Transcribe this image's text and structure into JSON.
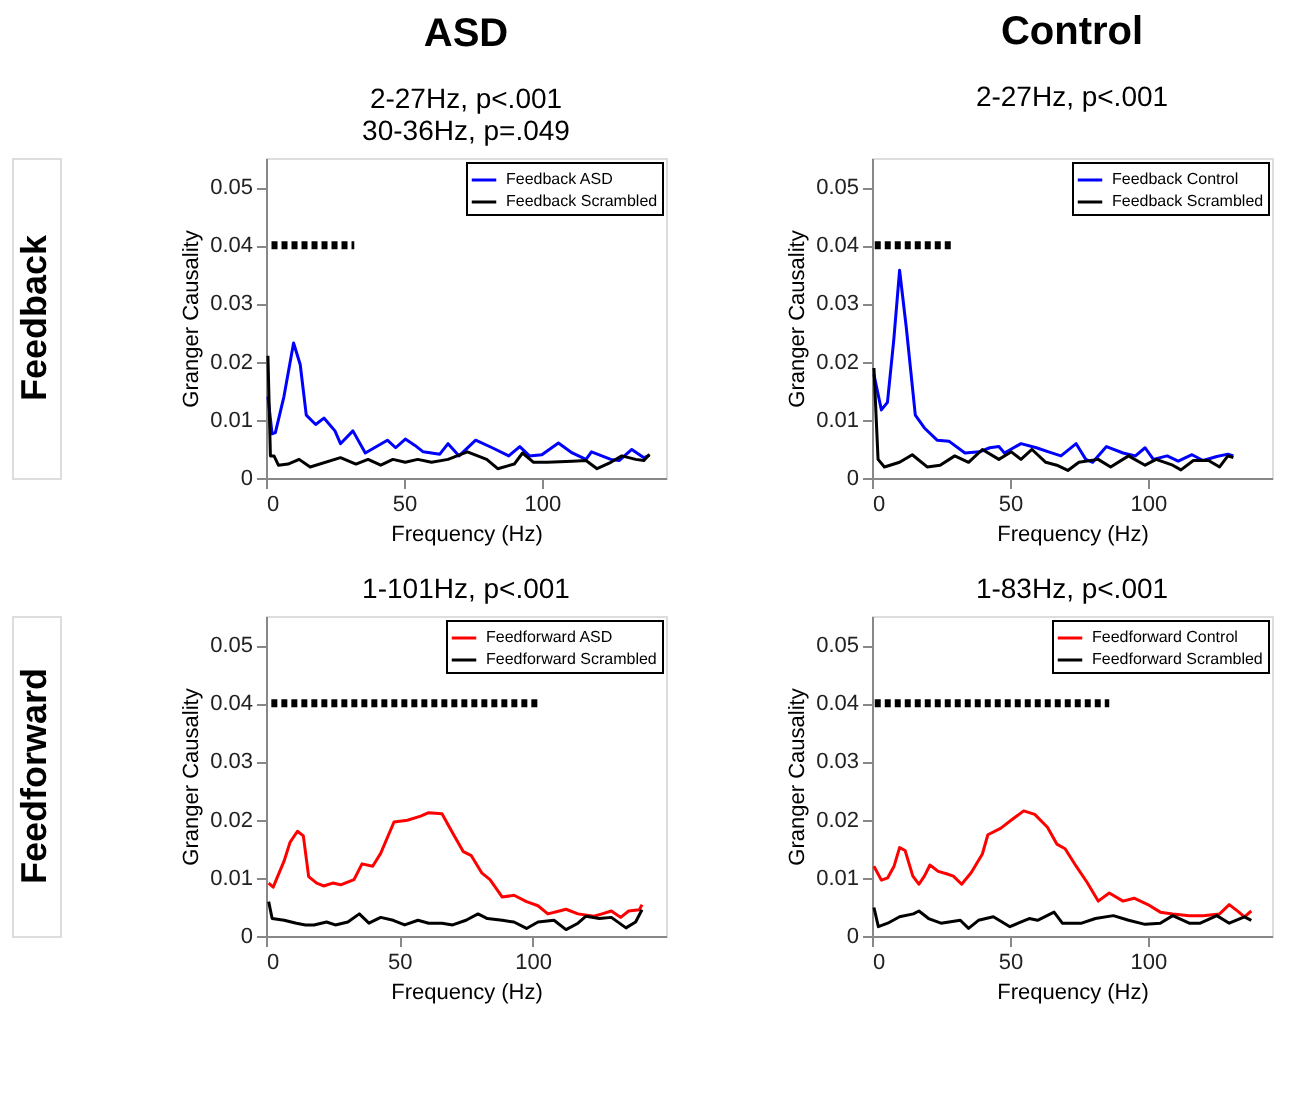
{
  "chart_data": [
    {
      "type": "line",
      "title": "ASD",
      "subtitle": "2-27Hz, p<.001\n30-36Hz, p=.049",
      "xlabel": "Frequency (Hz)",
      "ylabel": "Granger Causality",
      "annotations": [
        "Feedback"
      ],
      "xlim": [
        0,
        145
      ],
      "xticks": [
        0,
        50,
        100
      ],
      "ylim": [
        0,
        0.055
      ],
      "yticks": [
        0,
        0.01,
        0.02,
        0.03,
        0.04,
        0.05
      ],
      "legend": "top right",
      "series": [
        {
          "name": "Feedback ASD",
          "color": "#0000ff",
          "x": [
            0.7,
            2.2,
            3.4,
            6.5,
            10,
            12.4,
            14.6,
            18,
            21,
            25,
            27,
            31.5,
            36,
            44,
            47,
            50.5,
            54,
            57,
            63,
            66,
            70,
            76,
            82,
            88,
            92,
            95.5,
            100,
            106,
            111,
            116,
            118,
            125,
            128,
            132.6,
            137,
            139
          ],
          "values": [
            0.014,
            0.0076,
            0.0078,
            0.014,
            0.0232,
            0.0195,
            0.0108,
            0.0092,
            0.0103,
            0.0081,
            0.0059,
            0.0081,
            0.0043,
            0.0065,
            0.0052,
            0.0067,
            0.0056,
            0.0045,
            0.0041,
            0.0059,
            0.0038,
            0.0065,
            0.0052,
            0.0038,
            0.0054,
            0.0038,
            0.004,
            0.006,
            0.0043,
            0.0032,
            0.0045,
            0.0032,
            0.003,
            0.0049,
            0.0035,
            0.0039
          ]
        },
        {
          "name": "Feedback Scrambled",
          "color": "#000000",
          "x": [
            0.7,
            1.6,
            2.9,
            4.5,
            8,
            12,
            16,
            27,
            32.6,
            37,
            41.6,
            46,
            50.5,
            55,
            60,
            66,
            73,
            80,
            84,
            90,
            93,
            97,
            102,
            111,
            116,
            120,
            125,
            129,
            134,
            137,
            139
          ],
          "values": [
            0.021,
            0.0038,
            0.0038,
            0.0022,
            0.0024,
            0.0032,
            0.0019,
            0.0035,
            0.0024,
            0.0032,
            0.0022,
            0.0032,
            0.0027,
            0.0032,
            0.0027,
            0.0032,
            0.0045,
            0.0032,
            0.0016,
            0.0024,
            0.0043,
            0.0027,
            0.0027,
            0.0029,
            0.003,
            0.0016,
            0.0027,
            0.0038,
            0.0032,
            0.003,
            0.0041
          ]
        },
        {
          "color": "#000000",
          "line_style": "dotted",
          "x": [
            2,
            32
          ],
          "values": [
            0.04,
            0.04
          ]
        }
      ]
    },
    {
      "type": "line",
      "title": "Control",
      "subtitle": "2-27Hz, p<.001",
      "xlabel": "Frequency (Hz)",
      "ylabel": "Granger Causality",
      "xlim": [
        0,
        145
      ],
      "xticks": [
        0,
        50,
        100
      ],
      "ylim": [
        0,
        0.055
      ],
      "yticks": [
        0,
        0.01,
        0.02,
        0.03,
        0.04,
        0.05
      ],
      "legend": "top right",
      "series": [
        {
          "name": "Feedback Control",
          "color": "#0000ff",
          "x": [
            0.7,
            3.4,
            5.6,
            7.9,
            10,
            12.4,
            15.7,
            19,
            23.6,
            28,
            33.7,
            39,
            42.7,
            46,
            48,
            54,
            59.6,
            64,
            68.5,
            74,
            77.5,
            80,
            85,
            91,
            95.5,
            99,
            102,
            107,
            111,
            116,
            120,
            125,
            129,
            131
          ],
          "values": [
            0.0178,
            0.0117,
            0.013,
            0.0238,
            0.0357,
            0.026,
            0.0108,
            0.0086,
            0.0065,
            0.0063,
            0.0043,
            0.0045,
            0.0052,
            0.0054,
            0.0043,
            0.0059,
            0.0052,
            0.0045,
            0.0038,
            0.0059,
            0.0032,
            0.0027,
            0.0054,
            0.0043,
            0.0038,
            0.0052,
            0.0032,
            0.0038,
            0.0029,
            0.004,
            0.003,
            0.0037,
            0.0041,
            0.0038
          ]
        },
        {
          "name": "Feedback Scrambled",
          "color": "#000000",
          "x": [
            0.7,
            2.2,
            4.5,
            10,
            14.6,
            20,
            24.7,
            30,
            35,
            40,
            46,
            50.5,
            54,
            58,
            63,
            67,
            71,
            75,
            82,
            86.5,
            93,
            99,
            103,
            109,
            112,
            116.5,
            122,
            126,
            129,
            131
          ],
          "values": [
            0.0189,
            0.0032,
            0.0019,
            0.0027,
            0.004,
            0.0019,
            0.0022,
            0.0038,
            0.0027,
            0.0049,
            0.0032,
            0.0045,
            0.0032,
            0.0049,
            0.0027,
            0.0022,
            0.0013,
            0.0027,
            0.0032,
            0.0019,
            0.0038,
            0.0022,
            0.0032,
            0.0022,
            0.0014,
            0.003,
            0.003,
            0.0019,
            0.0038,
            0.0035
          ]
        },
        {
          "color": "#000000",
          "line_style": "dotted",
          "x": [
            1,
            29
          ],
          "values": [
            0.04,
            0.04
          ]
        }
      ]
    },
    {
      "type": "line",
      "title": "1-101Hz, p<.001",
      "xlabel": "Frequency (Hz)",
      "ylabel": "Granger Causality",
      "annotations": [
        "Feedforward"
      ],
      "xlim": [
        0,
        150
      ],
      "xticks": [
        0,
        50,
        100
      ],
      "ylim": [
        0,
        0.055
      ],
      "yticks": [
        0,
        0.01,
        0.02,
        0.03,
        0.04,
        0.05
      ],
      "legend": "top right",
      "series": [
        {
          "name": "Feedforward ASD",
          "color": "#ff0000",
          "x": [
            1,
            2.7,
            6.8,
            9,
            11.8,
            14,
            16,
            19,
            21.6,
            25,
            28,
            33,
            36,
            40,
            43,
            48,
            53,
            58,
            61,
            66,
            70,
            74,
            77,
            81,
            84,
            88.6,
            93,
            97.7,
            102,
            105.7,
            110,
            112.5,
            117,
            123,
            126,
            129.5,
            133,
            136,
            140,
            141
          ],
          "values": [
            0.0091,
            0.0084,
            0.0129,
            0.0161,
            0.018,
            0.0172,
            0.0102,
            0.0091,
            0.0086,
            0.0091,
            0.0088,
            0.0097,
            0.0124,
            0.012,
            0.0142,
            0.0196,
            0.0199,
            0.0206,
            0.0212,
            0.021,
            0.0177,
            0.0145,
            0.0138,
            0.0108,
            0.0097,
            0.0067,
            0.007,
            0.0059,
            0.0052,
            0.0038,
            0.0043,
            0.0046,
            0.0038,
            0.0034,
            0.0038,
            0.0043,
            0.0032,
            0.0043,
            0.0045,
            0.0054
          ]
        },
        {
          "name": "Feedforward Scrambled",
          "color": "#000000",
          "x": [
            1,
            2.3,
            6.8,
            11.4,
            14.8,
            18,
            22.7,
            26,
            30.7,
            35,
            38.6,
            43,
            47.7,
            52,
            57,
            61,
            66,
            70,
            75,
            79.5,
            83,
            88.6,
            93,
            97.7,
            102,
            108,
            112.5,
            117,
            120,
            125,
            129.5,
            135,
            138.6,
            141
          ],
          "values": [
            0.0059,
            0.003,
            0.0027,
            0.0022,
            0.0019,
            0.0019,
            0.0024,
            0.0019,
            0.0024,
            0.0038,
            0.0022,
            0.0032,
            0.0027,
            0.0019,
            0.0027,
            0.0022,
            0.0022,
            0.0019,
            0.0027,
            0.0038,
            0.003,
            0.0027,
            0.0024,
            0.0013,
            0.0024,
            0.0027,
            0.0011,
            0.0022,
            0.0034,
            0.003,
            0.0032,
            0.0014,
            0.0024,
            0.0045
          ]
        },
        {
          "color": "#000000",
          "line_style": "dotted",
          "x": [
            2,
            103
          ],
          "values": [
            0.04,
            0.04
          ]
        }
      ]
    },
    {
      "type": "line",
      "title": "1-83Hz, p<.001",
      "xlabel": "Frequency (Hz)",
      "ylabel": "Granger Causality",
      "xlim": [
        0,
        145
      ],
      "xticks": [
        0,
        50,
        100
      ],
      "ylim": [
        0,
        0.055
      ],
      "yticks": [
        0,
        0.01,
        0.02,
        0.03,
        0.04,
        0.05
      ],
      "legend": "top right",
      "series": [
        {
          "name": "Feedforward Control",
          "color": "#ff0000",
          "x": [
            0.7,
            3.4,
            5.7,
            8,
            10,
            12,
            14.8,
            17,
            19,
            21,
            24,
            27,
            29.5,
            32.5,
            36,
            40,
            42,
            46.6,
            51,
            55,
            59,
            63.6,
            67,
            70,
            74,
            78,
            82,
            86,
            91,
            95,
            100,
            104.5,
            109,
            115,
            120,
            126,
            129.5,
            133,
            135,
            137.5
          ],
          "values": [
            0.012,
            0.0096,
            0.01,
            0.012,
            0.0152,
            0.0147,
            0.0103,
            0.0089,
            0.0103,
            0.0122,
            0.0111,
            0.0107,
            0.0103,
            0.0089,
            0.0109,
            0.0141,
            0.0174,
            0.0185,
            0.0201,
            0.0215,
            0.0209,
            0.0187,
            0.0158,
            0.015,
            0.012,
            0.0092,
            0.006,
            0.0074,
            0.006,
            0.0065,
            0.0054,
            0.0041,
            0.0038,
            0.0035,
            0.0035,
            0.0038,
            0.0054,
            0.0041,
            0.0033,
            0.0043
          ]
        },
        {
          "name": "Feedforward Scrambled",
          "color": "#000000",
          "x": [
            0.7,
            2.3,
            5.7,
            10,
            15,
            17,
            20.5,
            25,
            32,
            35,
            38.6,
            44,
            50,
            53,
            57,
            60,
            66,
            69,
            76,
            81,
            87.5,
            93,
            99,
            104.5,
            109,
            115,
            119,
            125,
            129.5,
            135,
            137.5
          ],
          "values": [
            0.0049,
            0.0016,
            0.0022,
            0.0033,
            0.0038,
            0.0043,
            0.003,
            0.0022,
            0.0027,
            0.0013,
            0.0027,
            0.0033,
            0.0016,
            0.0022,
            0.003,
            0.0027,
            0.0041,
            0.0022,
            0.0022,
            0.003,
            0.0035,
            0.0027,
            0.002,
            0.0022,
            0.0035,
            0.0022,
            0.0022,
            0.0035,
            0.0022,
            0.0033,
            0.0027
          ]
        },
        {
          "color": "#000000",
          "line_style": "dotted",
          "x": [
            1,
            86
          ],
          "values": [
            0.04,
            0.04
          ]
        }
      ]
    }
  ]
}
